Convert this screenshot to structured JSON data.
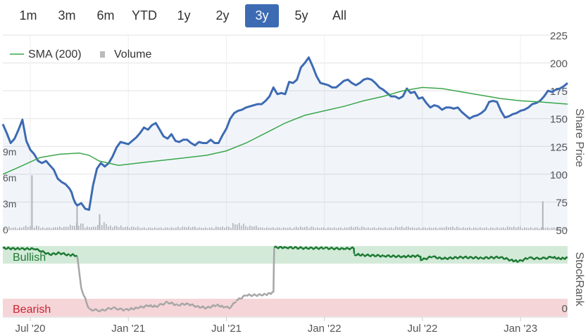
{
  "range_selector": {
    "buttons": [
      "1m",
      "3m",
      "6m",
      "YTD",
      "1y",
      "2y",
      "3y",
      "5y",
      "All"
    ],
    "active": "3y"
  },
  "colors": {
    "price": "#3d6bb3",
    "sma": "#3aa64a",
    "volume": "#bbbbbb",
    "bullish": "#1e7a34",
    "bearish_fill": "#f5d5d8",
    "bullish_fill": "#d3ead8",
    "stockrank_low": "#a6a6a6",
    "grid": "#e2e2e2",
    "active_button": "#3d6bb3"
  },
  "chart_data": [
    {
      "type": "line",
      "title": "",
      "legend": {
        "position": "top-left",
        "entries": [
          "SMA (200)",
          "Volume"
        ]
      },
      "ylabel": "Share Price",
      "ylim": [
        50,
        225
      ],
      "yticks": [
        "50",
        "75",
        "100",
        "125",
        "150",
        "175",
        "200",
        "225"
      ],
      "volume_ticks": [
        "0",
        "3m",
        "6m",
        "9m"
      ],
      "volume_ylim": [
        0,
        9
      ],
      "xlim": [
        2020.36,
        2023.24
      ],
      "xticks": [
        {
          "label": "Jul '20",
          "x": 2020.5
        },
        {
          "label": "Jan '21",
          "x": 2021.0
        },
        {
          "label": "Jul '21",
          "x": 2021.5
        },
        {
          "label": "Jan '22",
          "x": 2022.0
        },
        {
          "label": "Jul '22",
          "x": 2022.5
        },
        {
          "label": "Jan '23",
          "x": 2023.0
        }
      ],
      "series": [
        {
          "name": "Share Price",
          "x": [
            2020.36,
            2020.38,
            2020.4,
            2020.42,
            2020.44,
            2020.46,
            2020.48,
            2020.5,
            2020.52,
            2020.54,
            2020.56,
            2020.58,
            2020.6,
            2020.62,
            2020.64,
            2020.66,
            2020.68,
            2020.7,
            2020.71,
            2020.72,
            2020.73,
            2020.74,
            2020.76,
            2020.78,
            2020.8,
            2020.82,
            2020.84,
            2020.86,
            2020.88,
            2020.9,
            2020.92,
            2020.94,
            2020.96,
            2020.98,
            2021.0,
            2021.02,
            2021.04,
            2021.06,
            2021.08,
            2021.1,
            2021.12,
            2021.14,
            2021.16,
            2021.18,
            2021.2,
            2021.22,
            2021.24,
            2021.26,
            2021.28,
            2021.3,
            2021.32,
            2021.34,
            2021.36,
            2021.38,
            2021.4,
            2021.42,
            2021.44,
            2021.46,
            2021.48,
            2021.5,
            2021.52,
            2021.54,
            2021.56,
            2021.58,
            2021.6,
            2021.62,
            2021.64,
            2021.66,
            2021.68,
            2021.7,
            2021.72,
            2021.74,
            2021.76,
            2021.78,
            2021.8,
            2021.82,
            2021.84,
            2021.86,
            2021.88,
            2021.9,
            2021.92,
            2021.94,
            2021.96,
            2021.98,
            2022.0,
            2022.02,
            2022.04,
            2022.06,
            2022.08,
            2022.1,
            2022.12,
            2022.14,
            2022.16,
            2022.18,
            2022.2,
            2022.22,
            2022.24,
            2022.26,
            2022.28,
            2022.3,
            2022.32,
            2022.34,
            2022.36,
            2022.38,
            2022.4,
            2022.42,
            2022.44,
            2022.46,
            2022.48,
            2022.5,
            2022.52,
            2022.54,
            2022.56,
            2022.58,
            2022.6,
            2022.62,
            2022.64,
            2022.66,
            2022.68,
            2022.7,
            2022.72,
            2022.74,
            2022.76,
            2022.78,
            2022.8,
            2022.82,
            2022.84,
            2022.86,
            2022.88,
            2022.9,
            2022.92,
            2022.94,
            2022.96,
            2022.98,
            2023.0,
            2023.02,
            2023.04,
            2023.06,
            2023.08,
            2023.1,
            2023.12,
            2023.14,
            2023.16,
            2023.18,
            2023.2,
            2023.22,
            2023.24
          ],
          "values": [
            145,
            137,
            128,
            132,
            140,
            149,
            130,
            122,
            118,
            112,
            110,
            112,
            108,
            104,
            96,
            93,
            91,
            87,
            84,
            78,
            74,
            72,
            74,
            69,
            68,
            90,
            105,
            110,
            107,
            110,
            116,
            124,
            129,
            128,
            127,
            130,
            133,
            137,
            142,
            140,
            144,
            146,
            140,
            134,
            132,
            136,
            130,
            129,
            131,
            131,
            128,
            126,
            129,
            128,
            128,
            131,
            128,
            128,
            135,
            141,
            150,
            155,
            157,
            158,
            160,
            161,
            162,
            163,
            163,
            166,
            170,
            178,
            172,
            173,
            172,
            183,
            182,
            185,
            196,
            200,
            205,
            197,
            188,
            182,
            181,
            180,
            178,
            178,
            181,
            184,
            185,
            182,
            180,
            182,
            185,
            186,
            185,
            182,
            178,
            176,
            173,
            170,
            170,
            168,
            170,
            177,
            173,
            174,
            168,
            169,
            164,
            160,
            162,
            161,
            158,
            160,
            160,
            159,
            160,
            156,
            153,
            150,
            152,
            153,
            155,
            158,
            165,
            166,
            165,
            157,
            151,
            152,
            154,
            155,
            157,
            158,
            160,
            163,
            164,
            166,
            170,
            175,
            174,
            176,
            177,
            179,
            182
          ]
        },
        {
          "name": "SMA (200)",
          "x": [
            2020.36,
            2020.45,
            2020.55,
            2020.65,
            2020.75,
            2020.8,
            2020.85,
            2020.95,
            2021.1,
            2021.25,
            2021.4,
            2021.5,
            2021.6,
            2021.7,
            2021.8,
            2021.9,
            2022.0,
            2022.1,
            2022.2,
            2022.3,
            2022.4,
            2022.5,
            2022.6,
            2022.7,
            2022.8,
            2022.9,
            2023.0,
            2023.1,
            2023.24
          ],
          "values": [
            100,
            107,
            115,
            118,
            119,
            117,
            112,
            108,
            111,
            114,
            117,
            121,
            128,
            137,
            146,
            153,
            157,
            161,
            166,
            170,
            175,
            178,
            177,
            174,
            171,
            168,
            166,
            165,
            163
          ]
        },
        {
          "name": "Volume",
          "x": [
            2020.36,
            2020.42,
            2020.5,
            2020.58,
            2020.66,
            2020.72,
            2020.74,
            2020.8,
            2020.84,
            2020.86,
            2020.92,
            2021.0,
            2021.1,
            2021.2,
            2021.3,
            2021.4,
            2021.48,
            2021.56,
            2021.62,
            2021.7,
            2021.8,
            2021.9,
            2022.0,
            2022.08,
            2022.16,
            2022.24,
            2022.32,
            2022.4,
            2022.48,
            2022.56,
            2022.64,
            2022.72,
            2022.8,
            2022.88,
            2022.96,
            2023.04,
            2023.12,
            2023.2
          ],
          "values": [
            0.4,
            0.3,
            0.5,
            0.3,
            0.4,
            0.6,
            0.8,
            0.4,
            0.6,
            0.9,
            0.5,
            0.4,
            0.3,
            0.3,
            0.4,
            0.3,
            0.4,
            0.8,
            0.5,
            0.3,
            0.3,
            0.4,
            0.3,
            0.3,
            0.4,
            0.3,
            0.3,
            0.4,
            0.3,
            0.3,
            0.4,
            0.3,
            0.3,
            0.3,
            0.4,
            0.3,
            0.3,
            0.3
          ],
          "spikes": [
            {
              "x": 2020.505,
              "value": 6.3
            },
            {
              "x": 2020.735,
              "value": 2.9
            },
            {
              "x": 2020.85,
              "value": 1.8
            },
            {
              "x": 2023.11,
              "value": 3.3
            }
          ]
        }
      ]
    },
    {
      "type": "line",
      "title": "",
      "ylabel": "StockRank",
      "bands": [
        "Bullish",
        "Bearish"
      ],
      "yticks": [
        "0"
      ],
      "ylim": [
        0,
        100
      ],
      "series": [
        {
          "name": "StockRank",
          "x": [
            2020.36,
            2020.45,
            2020.52,
            2020.55,
            2020.6,
            2020.65,
            2020.7,
            2020.72,
            2020.74,
            2020.76,
            2020.8,
            2020.86,
            2020.92,
            2020.98,
            2021.05,
            2021.1,
            2021.14,
            2021.2,
            2021.25,
            2021.3,
            2021.35,
            2021.4,
            2021.45,
            2021.49,
            2021.52,
            2021.55,
            2021.6,
            2021.65,
            2021.7,
            2021.74,
            2021.744,
            2021.8,
            2021.9,
            2022.0,
            2022.1,
            2022.15,
            2022.152,
            2022.2,
            2022.3,
            2022.4,
            2022.49,
            2022.492,
            2022.55,
            2022.6,
            2022.7,
            2022.8,
            2022.9,
            2022.95,
            2022.99,
            2023.04,
            2023.1,
            2023.16,
            2023.2,
            2023.24
          ],
          "values": [
            97,
            96,
            96,
            93,
            88,
            90,
            87,
            88,
            85,
            40,
            10,
            8,
            12,
            9,
            12,
            15,
            14,
            20,
            16,
            18,
            14,
            12,
            16,
            13,
            12,
            22,
            30,
            30,
            31,
            34,
            98,
            98,
            97,
            97,
            96,
            97,
            88,
            87,
            86,
            85,
            86,
            80,
            85,
            82,
            84,
            83,
            84,
            80,
            78,
            83,
            82,
            84,
            82,
            83
          ]
        }
      ]
    }
  ]
}
